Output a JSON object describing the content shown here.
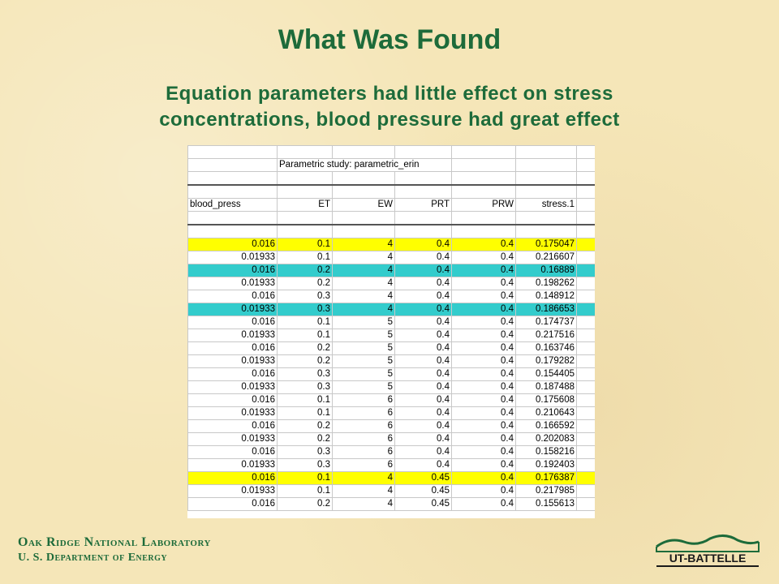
{
  "slide": {
    "title": "What Was Found",
    "subtitle_line1": "Equation parameters had little effect on stress",
    "subtitle_line2": "concentrations, blood pressure had great effect"
  },
  "sheet": {
    "caption": "Parametric study: parametric_erin",
    "headers": [
      "blood_press",
      "ET",
      "EW",
      "PRT",
      "PRW",
      "stress.1"
    ],
    "rows": [
      {
        "highlight": "yellow",
        "cells": [
          "0.016",
          "0.1",
          "4",
          "0.4",
          "0.4",
          "0.175047"
        ]
      },
      {
        "highlight": "",
        "cells": [
          "0.01933",
          "0.1",
          "4",
          "0.4",
          "0.4",
          "0.216607"
        ]
      },
      {
        "highlight": "cyan",
        "cells": [
          "0.016",
          "0.2",
          "4",
          "0.4",
          "0.4",
          "0.16889"
        ]
      },
      {
        "highlight": "",
        "cells": [
          "0.01933",
          "0.2",
          "4",
          "0.4",
          "0.4",
          "0.198262"
        ]
      },
      {
        "highlight": "",
        "cells": [
          "0.016",
          "0.3",
          "4",
          "0.4",
          "0.4",
          "0.148912"
        ]
      },
      {
        "highlight": "cyan",
        "cells": [
          "0.01933",
          "0.3",
          "4",
          "0.4",
          "0.4",
          "0.186653"
        ]
      },
      {
        "highlight": "",
        "cells": [
          "0.016",
          "0.1",
          "5",
          "0.4",
          "0.4",
          "0.174737"
        ]
      },
      {
        "highlight": "",
        "cells": [
          "0.01933",
          "0.1",
          "5",
          "0.4",
          "0.4",
          "0.217516"
        ]
      },
      {
        "highlight": "",
        "cells": [
          "0.016",
          "0.2",
          "5",
          "0.4",
          "0.4",
          "0.163746"
        ]
      },
      {
        "highlight": "",
        "cells": [
          "0.01933",
          "0.2",
          "5",
          "0.4",
          "0.4",
          "0.179282"
        ]
      },
      {
        "highlight": "",
        "cells": [
          "0.016",
          "0.3",
          "5",
          "0.4",
          "0.4",
          "0.154405"
        ]
      },
      {
        "highlight": "",
        "cells": [
          "0.01933",
          "0.3",
          "5",
          "0.4",
          "0.4",
          "0.187488"
        ]
      },
      {
        "highlight": "",
        "cells": [
          "0.016",
          "0.1",
          "6",
          "0.4",
          "0.4",
          "0.175608"
        ]
      },
      {
        "highlight": "",
        "cells": [
          "0.01933",
          "0.1",
          "6",
          "0.4",
          "0.4",
          "0.210643"
        ]
      },
      {
        "highlight": "",
        "cells": [
          "0.016",
          "0.2",
          "6",
          "0.4",
          "0.4",
          "0.166592"
        ]
      },
      {
        "highlight": "",
        "cells": [
          "0.01933",
          "0.2",
          "6",
          "0.4",
          "0.4",
          "0.202083"
        ]
      },
      {
        "highlight": "",
        "cells": [
          "0.016",
          "0.3",
          "6",
          "0.4",
          "0.4",
          "0.158216"
        ]
      },
      {
        "highlight": "",
        "cells": [
          "0.01933",
          "0.3",
          "6",
          "0.4",
          "0.4",
          "0.192403"
        ]
      },
      {
        "highlight": "yellow",
        "cells": [
          "0.016",
          "0.1",
          "4",
          "0.45",
          "0.4",
          "0.176387"
        ]
      },
      {
        "highlight": "",
        "cells": [
          "0.01933",
          "0.1",
          "4",
          "0.45",
          "0.4",
          "0.217985"
        ]
      },
      {
        "highlight": "",
        "cells": [
          "0.016",
          "0.2",
          "4",
          "0.45",
          "0.4",
          "0.155613"
        ]
      }
    ]
  },
  "footer": {
    "org_line1": "Oak Ridge National Laboratory",
    "org_line2": "U. S. Department of Energy"
  },
  "logo": {
    "text": "UT-BATTELLE"
  },
  "colors": {
    "title_green": "#1d6b3a",
    "background": "#f5e6b8",
    "highlight_yellow": "#ffff00",
    "highlight_cyan": "#33cccc"
  }
}
